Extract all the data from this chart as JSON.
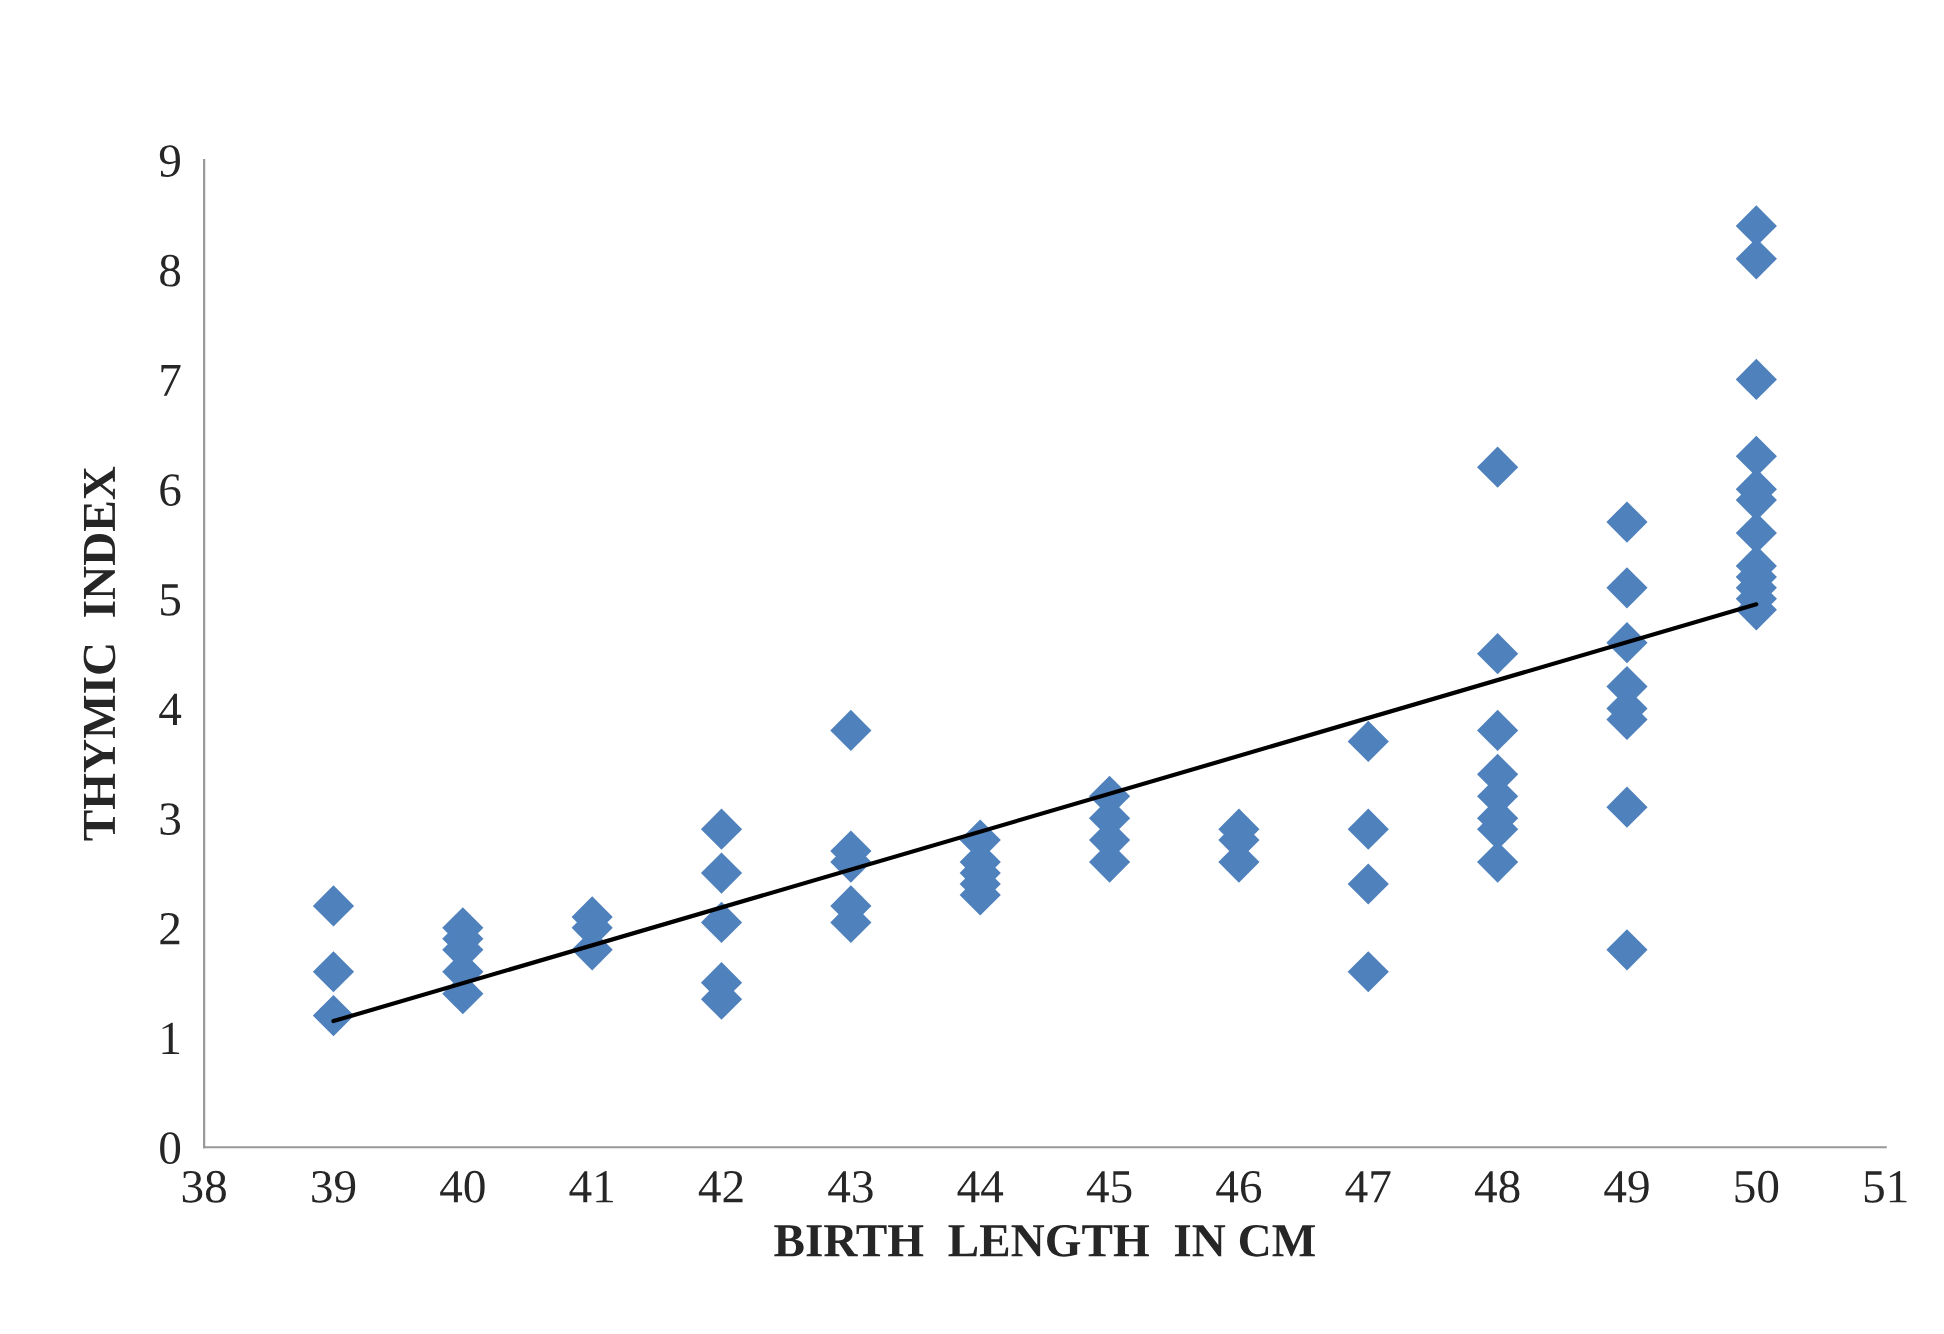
{
  "chart_data": {
    "type": "scatter",
    "xlabel": "BIRTH  LENGTH  IN CM",
    "ylabel": "THYMIC  INDEX",
    "xlim": [
      38,
      51
    ],
    "ylim": [
      0,
      9
    ],
    "xticks": [
      38,
      39,
      40,
      41,
      42,
      43,
      44,
      45,
      46,
      47,
      48,
      49,
      50,
      51
    ],
    "yticks": [
      0,
      1,
      2,
      3,
      4,
      5,
      6,
      7,
      8,
      9
    ],
    "grid": false,
    "legend": false,
    "marker": "diamond",
    "series": [
      {
        "color": "#4f81bd",
        "x": [
          39,
          39,
          39,
          40,
          40,
          40,
          40,
          40,
          41,
          41,
          41,
          42,
          42,
          42,
          42,
          42,
          43,
          43,
          43,
          43,
          43,
          44,
          44,
          44,
          44,
          44,
          45,
          45,
          45,
          45,
          46,
          46,
          46,
          47,
          47,
          47,
          47,
          48,
          48,
          48,
          48,
          48,
          48,
          48,
          48,
          49,
          49,
          49,
          49,
          49,
          49,
          49,
          49,
          50,
          50,
          50,
          50,
          50,
          50,
          50,
          50,
          50,
          50,
          50,
          50
        ],
        "values": [
          2.2,
          1.6,
          1.2,
          2.0,
          1.9,
          1.8,
          1.6,
          1.4,
          2.1,
          2.0,
          1.8,
          2.9,
          2.5,
          2.05,
          1.5,
          1.35,
          3.8,
          2.7,
          2.6,
          2.2,
          2.05,
          2.8,
          2.6,
          2.5,
          2.4,
          2.3,
          3.2,
          3.0,
          2.8,
          2.6,
          2.9,
          2.8,
          2.6,
          3.7,
          2.9,
          2.4,
          1.6,
          6.2,
          4.5,
          3.8,
          3.4,
          3.2,
          3.0,
          2.9,
          2.6,
          5.7,
          5.1,
          4.6,
          4.2,
          4.0,
          3.9,
          3.1,
          1.8,
          8.4,
          8.1,
          7.0,
          6.3,
          6.0,
          5.9,
          5.6,
          5.3,
          5.2,
          5.1,
          5.0,
          4.9
        ]
      },
      {
        "type": "line",
        "color": "#000000",
        "x": [
          39,
          50
        ],
        "values": [
          1.15,
          4.95
        ],
        "marker": "none",
        "line_style": "solid"
      }
    ]
  }
}
